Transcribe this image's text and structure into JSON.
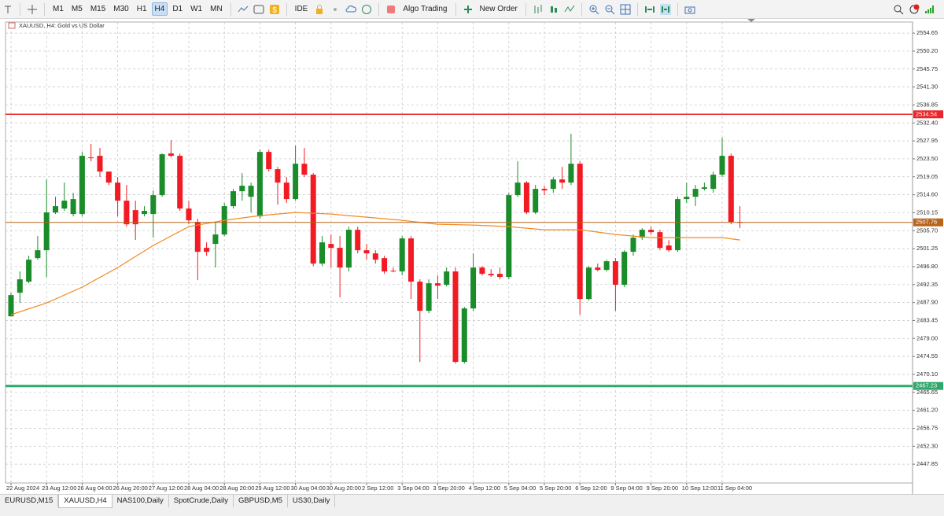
{
  "toolbar": {
    "timeframes": [
      "M1",
      "M5",
      "M15",
      "M30",
      "H1",
      "H4",
      "D1",
      "W1",
      "MN"
    ],
    "ide": "IDE",
    "algo_trading": "Algo Trading",
    "new_order": "New Order"
  },
  "tabs": [
    "EURUSD,M15",
    "XAUUSD,H4",
    "NAS100,Daily",
    "SpotCrude,Daily",
    "GBPUSD,M5",
    "US30,Daily"
  ],
  "chart_data": {
    "type": "candlestick",
    "title": "XAUUSD, H4:  Gold vs US Dollar",
    "categories": [
      "22 Aug 2024",
      null,
      null,
      null,
      "23 Aug 12:00",
      null,
      null,
      null,
      "26 Aug 04:00",
      null,
      null,
      null,
      "26 Aug 20:00",
      null,
      null,
      null,
      "27 Aug 12:00",
      null,
      null,
      null,
      "28 Aug 04:00",
      null,
      null,
      null,
      "28 Aug 20:00",
      null,
      null,
      null,
      "29 Aug 12:00",
      null,
      null,
      null,
      "30 Aug 04:00",
      null,
      null,
      null,
      "30 Aug 20:00",
      null,
      null,
      null,
      "2 Sep 12:00",
      null,
      null,
      null,
      "3 Sep 04:00",
      null,
      null,
      null,
      "3 Sep 20:00",
      null,
      null,
      null,
      "4 Sep 12:00",
      null,
      null,
      null,
      "5 Sep 04:00",
      null,
      null,
      null,
      "5 Sep 20:00",
      null,
      null,
      null,
      "6 Sep 12:00",
      null,
      null,
      null,
      "9 Sep 04:00",
      null,
      null,
      null,
      "9 Sep 20:00",
      null,
      null,
      null,
      "10 Sep 12:00",
      null,
      null,
      null,
      "11 Sep 04:00",
      null,
      null
    ],
    "open": [
      2484.49,
      2490.34,
      2493.07,
      2498.91,
      2500.86,
      2510.22,
      2511.19,
      2509.83,
      2509.83,
      2523.86,
      2524.25,
      2520.35,
      2517.62,
      2513.14,
      2510.8,
      2509.83,
      2509.83,
      2514.5,
      2524.83,
      2524.25,
      2511.19,
      2507.88,
      2501.45,
      2502.42,
      2504.76,
      2511.78,
      2515.48,
      2514.11,
      2509.24,
      2525.22,
      2520.94,
      2517.62,
      2513.53,
      2522.3,
      2519.57,
      2497.55,
      2502.42,
      2501.45,
      2496.57,
      2505.93,
      2500.86,
      2500.08,
      2498.91,
      2495.79,
      2495.6,
      2503.79,
      2493.07,
      2485.85,
      2492.68,
      2492.29,
      2495.6,
      2473.19,
      2486.44,
      2496.57,
      2495.01,
      2495.01,
      2494.24,
      2514.5,
      2517.62,
      2510.22,
      2516.06,
      2516.06,
      2518.4,
      2517.62,
      2522.3,
      2488.78,
      2496.57,
      2495.99,
      2498.13,
      2492.29,
      2500.47,
      2503.98,
      2505.93,
      2505.34,
      2502.03,
      2500.86,
      2513.53,
      2514.11,
      2516.06,
      2516.06,
      2519.57,
      2524.25,
      2507.88
    ],
    "high": [
      2490.34,
      2495.6,
      2499.5,
      2504.37,
      2518.4,
      2514.11,
      2517.62,
      2515.09,
      2525.22,
      2527.17,
      2526.2,
      2520.35,
      2518.99,
      2517.04,
      2513.14,
      2511.78,
      2515.67,
      2524.83,
      2528.15,
      2524.83,
      2513.14,
      2508.66,
      2502.81,
      2507.68,
      2512.56,
      2516.06,
      2519.96,
      2517.62,
      2525.81,
      2525.81,
      2521.52,
      2518.99,
      2526.78,
      2526.2,
      2519.96,
      2504.37,
      2504.76,
      2504.37,
      2506.71,
      2506.71,
      2502.42,
      2500.86,
      2499.5,
      2496.57,
      2504.37,
      2504.37,
      2493.65,
      2493.65,
      2494.62,
      2496.57,
      2496.57,
      2486.83,
      2500.08,
      2496.96,
      2496.18,
      2496.57,
      2515.09,
      2522.89,
      2518.01,
      2517.04,
      2516.84,
      2518.99,
      2521.52,
      2529.71,
      2522.89,
      2496.96,
      2497.55,
      2498.52,
      2498.91,
      2500.86,
      2504.76,
      2506.32,
      2506.71,
      2505.93,
      2503.4,
      2514.11,
      2517.62,
      2517.04,
      2517.62,
      2520.35,
      2528.73,
      2524.83,
      2511.78
    ],
    "low": [
      2484.49,
      2487.8,
      2492.68,
      2498.52,
      2494.24,
      2509.83,
      2510.61,
      2509.24,
      2509.24,
      2522.89,
      2518.99,
      2517.04,
      2509.24,
      2506.71,
      2503.4,
      2509.24,
      2503.98,
      2514.11,
      2523.86,
      2510.61,
      2507.29,
      2493.46,
      2499.5,
      2496.57,
      2504.37,
      2511.19,
      2513.14,
      2510.22,
      2508.66,
      2520.35,
      2512.17,
      2512.56,
      2513.14,
      2518.99,
      2496.96,
      2496.96,
      2496.57,
      2489.17,
      2495.6,
      2500.08,
      2498.52,
      2497.55,
      2495.01,
      2495.4,
      2494.62,
      2488.78,
      2473.19,
      2485.27,
      2488.78,
      2491.9,
      2472.8,
      2472.8,
      2485.85,
      2494.62,
      2494.24,
      2493.65,
      2493.65,
      2514.11,
      2509.83,
      2509.83,
      2514.5,
      2515.09,
      2516.06,
      2517.04,
      2484.88,
      2488.39,
      2495.6,
      2495.6,
      2485.85,
      2491.7,
      2499.5,
      2503.4,
      2504.76,
      2500.86,
      2500.47,
      2500.47,
      2512.56,
      2511.78,
      2515.67,
      2515.09,
      2518.99,
      2507.29,
      2506.32
    ],
    "close": [
      2489.75,
      2493.65,
      2498.52,
      2500.86,
      2510.22,
      2511.78,
      2513.14,
      2513.53,
      2524.25,
      2523.67,
      2520.35,
      2517.62,
      2513.14,
      2507.29,
      2507.29,
      2510.61,
      2514.5,
      2524.64,
      2524.25,
      2511.19,
      2508.27,
      2500.47,
      2500.47,
      2504.76,
      2511.78,
      2515.48,
      2516.84,
      2516.84,
      2525.22,
      2520.94,
      2517.62,
      2513.53,
      2522.3,
      2519.57,
      2497.55,
      2502.81,
      2501.45,
      2496.57,
      2505.93,
      2500.86,
      2500.08,
      2498.52,
      2495.6,
      2495.6,
      2503.79,
      2493.07,
      2485.85,
      2492.68,
      2492.09,
      2495.6,
      2473.19,
      2486.44,
      2496.57,
      2495.01,
      2494.62,
      2494.24,
      2514.5,
      2517.62,
      2510.22,
      2516.06,
      2515.67,
      2518.4,
      2517.62,
      2522.3,
      2488.78,
      2496.57,
      2495.99,
      2498.13,
      2492.29,
      2500.47,
      2503.98,
      2505.93,
      2505.34,
      2501.45,
      2500.86,
      2513.53,
      2514.11,
      2516.06,
      2516.45,
      2519.57,
      2524.25,
      2507.88,
      2507.68
    ],
    "up_color": "#1a8c2a",
    "down_color": "#f21b23",
    "ma": {
      "color": "#f08a24",
      "x": [
        0,
        4,
        8,
        12,
        16,
        20,
        24,
        28,
        32,
        36,
        40,
        44,
        48,
        52,
        56,
        60,
        64,
        68,
        72,
        76,
        80,
        82
      ],
      "values": [
        2484.88,
        2487.8,
        2491.7,
        2496.57,
        2502.03,
        2506.71,
        2508.27,
        2509.44,
        2510.22,
        2509.83,
        2509.05,
        2508.27,
        2507.29,
        2507.1,
        2506.71,
        2505.93,
        2505.93,
        2504.76,
        2503.98,
        2503.98,
        2503.98,
        2503.4
      ]
    },
    "levels": [
      {
        "value": 2534.54,
        "color": "#e8262b"
      },
      {
        "value": 2507.76,
        "color": "#b8641c"
      },
      {
        "value": 2467.23,
        "color": "#2ea86b"
      }
    ],
    "ylim": [
      2443.2,
      2557.4
    ],
    "yticks": [
      2554.65,
      {
        "value": 2550.2,
        "label": "2550.20"
      },
      2545.75,
      {
        "value": 2541.3,
        "label": "2541.30"
      },
      2536.85,
      {
        "value": 2532.4,
        "label": "2532.40"
      },
      2527.95,
      {
        "value": 2523.5,
        "label": "2523.50"
      },
      2519.05,
      {
        "value": 2514.6,
        "label": "2514.60"
      },
      2510.15,
      {
        "value": 2505.7,
        "label": "2505.70"
      },
      2501.25,
      {
        "value": 2496.8,
        "label": "2496.80"
      },
      2492.35,
      {
        "value": 2487.9,
        "label": "2487.90"
      },
      2483.45,
      {
        "value": 2479,
        "label": "2479.00"
      },
      2474.55,
      {
        "value": 2470.1,
        "label": "2470.10"
      },
      2465.65,
      {
        "value": 2461.2,
        "label": "2461.20"
      },
      2456.75,
      {
        "value": 2452.3,
        "label": "2452.30"
      },
      2447.85
    ],
    "grid": true
  }
}
